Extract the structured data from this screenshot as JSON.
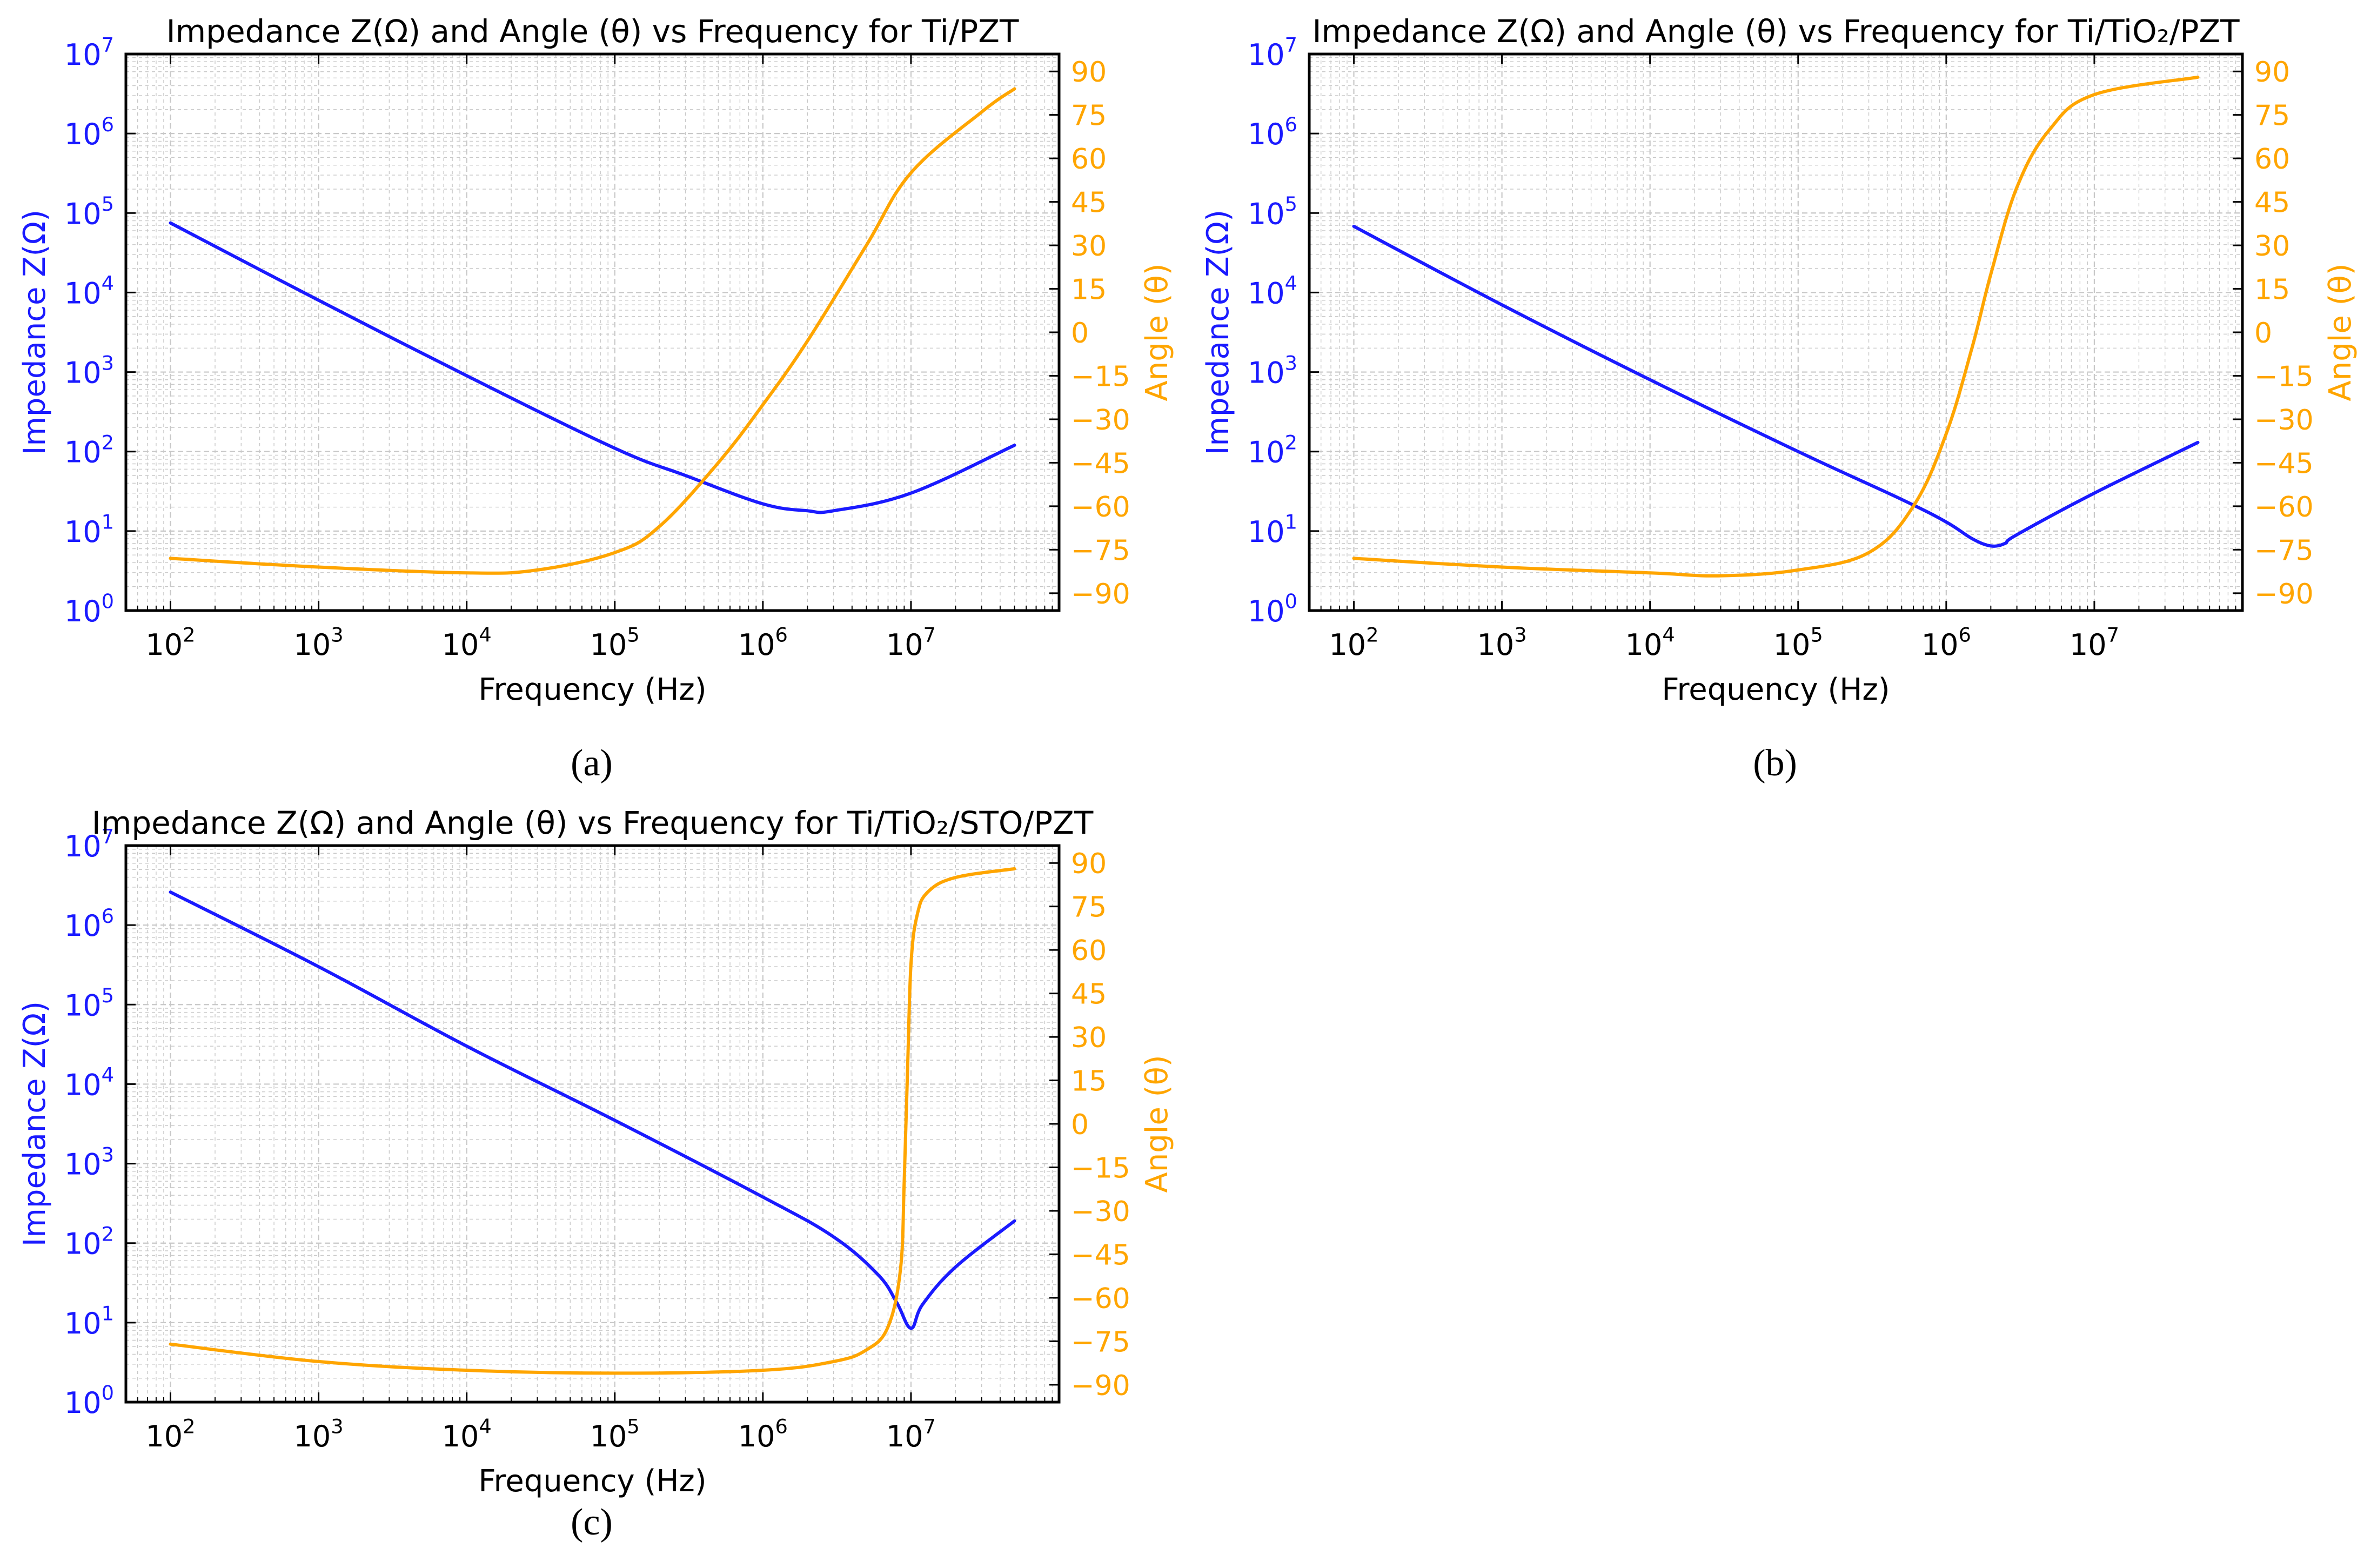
{
  "colors": {
    "impedance": "#1a1aff",
    "angle": "#ffa500",
    "axis": "#000000",
    "grid": "#c8c8c8",
    "text": "#000000"
  },
  "chart_data": [
    {
      "panel": "(a)",
      "type": "line",
      "title": "Impedance Z(Ω) and Angle (θ) vs Frequency for Ti/PZT",
      "xlabel": "Frequency (Hz)",
      "ylabel_left": "Impedance Z(Ω)",
      "ylabel_right": "Angle (θ)",
      "xscale": "log",
      "xlim": [
        50,
        100000000
      ],
      "xticks": [
        {
          "value": 100,
          "exp": "2"
        },
        {
          "value": 1000,
          "exp": "3"
        },
        {
          "value": 10000,
          "exp": "4"
        },
        {
          "value": 100000,
          "exp": "5"
        },
        {
          "value": 1000000,
          "exp": "6"
        },
        {
          "value": 10000000,
          "exp": "7"
        }
      ],
      "yscale_left": "log",
      "ylim_left": [
        1,
        10000000
      ],
      "yticks_left": [
        {
          "value": 1,
          "exp": "0"
        },
        {
          "value": 10,
          "exp": "1"
        },
        {
          "value": 100,
          "exp": "2"
        },
        {
          "value": 1000,
          "exp": "3"
        },
        {
          "value": 10000,
          "exp": "4"
        },
        {
          "value": 100000,
          "exp": "5"
        },
        {
          "value": 1000000,
          "exp": "6"
        },
        {
          "value": 10000000,
          "exp": "7"
        }
      ],
      "ylim_right": [
        -96,
        96
      ],
      "yticks_right": [
        -90,
        -75,
        -60,
        -45,
        -30,
        -15,
        0,
        15,
        30,
        45,
        60,
        75,
        90
      ],
      "series": [
        {
          "name": "Impedance Z(Ω)",
          "axis": "left",
          "x": [
            100,
            1000,
            10000,
            100000,
            300000,
            1000000,
            2000000,
            3000000,
            10000000,
            50000000
          ],
          "y": [
            75000,
            8000,
            900,
            110,
            50,
            22,
            18,
            18,
            30,
            120
          ]
        },
        {
          "name": "Angle (θ)",
          "axis": "right",
          "x": [
            100,
            1000,
            10000,
            30000,
            100000,
            200000,
            500000,
            1000000,
            2000000,
            5000000,
            10000000,
            30000000,
            50000000
          ],
          "y": [
            -78,
            -81,
            -83,
            -82,
            -76,
            -67,
            -45,
            -25,
            -3,
            30,
            55,
            76,
            84
          ]
        }
      ]
    },
    {
      "panel": "(b)",
      "type": "line",
      "title": "Impedance Z(Ω) and Angle (θ) vs Frequency for Ti/TiO₂/PZT",
      "xlabel": "Frequency (Hz)",
      "ylabel_left": "Impedance Z(Ω)",
      "ylabel_right": "Angle (θ)",
      "xscale": "log",
      "xlim": [
        50,
        100000000
      ],
      "xticks": [
        {
          "value": 100,
          "exp": "2"
        },
        {
          "value": 1000,
          "exp": "3"
        },
        {
          "value": 10000,
          "exp": "4"
        },
        {
          "value": 100000,
          "exp": "5"
        },
        {
          "value": 1000000,
          "exp": "6"
        },
        {
          "value": 10000000,
          "exp": "7"
        }
      ],
      "yscale_left": "log",
      "ylim_left": [
        1,
        10000000
      ],
      "yticks_left": [
        {
          "value": 1,
          "exp": "0"
        },
        {
          "value": 10,
          "exp": "1"
        },
        {
          "value": 100,
          "exp": "2"
        },
        {
          "value": 1000,
          "exp": "3"
        },
        {
          "value": 10000,
          "exp": "4"
        },
        {
          "value": 100000,
          "exp": "5"
        },
        {
          "value": 1000000,
          "exp": "6"
        },
        {
          "value": 10000000,
          "exp": "7"
        }
      ],
      "ylim_right": [
        -96,
        96
      ],
      "yticks_right": [
        -90,
        -75,
        -60,
        -45,
        -30,
        -15,
        0,
        15,
        30,
        45,
        60,
        75,
        90
      ],
      "series": [
        {
          "name": "Impedance Z(Ω)",
          "axis": "left",
          "x": [
            100,
            1000,
            10000,
            100000,
            500000,
            1000000,
            1500000,
            2000000,
            2500000,
            3000000,
            10000000,
            50000000
          ],
          "y": [
            68000,
            7000,
            800,
            100,
            25,
            13,
            8,
            6.5,
            7,
            9,
            30,
            130
          ]
        },
        {
          "name": "Angle (θ)",
          "axis": "right",
          "x": [
            100,
            1000,
            10000,
            30000,
            100000,
            300000,
            600000,
            1000000,
            1500000,
            2000000,
            3000000,
            5000000,
            10000000,
            50000000
          ],
          "y": [
            -78,
            -81,
            -83,
            -84,
            -82,
            -76,
            -60,
            -35,
            -5,
            20,
            50,
            70,
            82,
            88
          ]
        }
      ]
    },
    {
      "panel": "(c)",
      "type": "line",
      "title": "Impedance Z(Ω) and Angle (θ) vs Frequency for Ti/TiO₂/STO/PZT",
      "xlabel": "Frequency (Hz)",
      "ylabel_left": "Impedance Z(Ω)",
      "ylabel_right": "Angle (θ)",
      "xscale": "log",
      "xlim": [
        50,
        100000000
      ],
      "xticks": [
        {
          "value": 100,
          "exp": "2"
        },
        {
          "value": 1000,
          "exp": "3"
        },
        {
          "value": 10000,
          "exp": "4"
        },
        {
          "value": 100000,
          "exp": "5"
        },
        {
          "value": 1000000,
          "exp": "6"
        },
        {
          "value": 10000000,
          "exp": "7"
        }
      ],
      "yscale_left": "log",
      "ylim_left": [
        1,
        10000000
      ],
      "yticks_left": [
        {
          "value": 1,
          "exp": "0"
        },
        {
          "value": 10,
          "exp": "1"
        },
        {
          "value": 100,
          "exp": "2"
        },
        {
          "value": 1000,
          "exp": "3"
        },
        {
          "value": 10000,
          "exp": "4"
        },
        {
          "value": 100000,
          "exp": "5"
        },
        {
          "value": 1000000,
          "exp": "6"
        },
        {
          "value": 10000000,
          "exp": "7"
        }
      ],
      "ylim_right": [
        -96,
        96
      ],
      "yticks_right": [
        -90,
        -75,
        -60,
        -45,
        -30,
        -15,
        0,
        15,
        30,
        45,
        60,
        75,
        90
      ],
      "series": [
        {
          "name": "Impedance Z(Ω)",
          "axis": "left",
          "x": [
            100,
            1000,
            10000,
            100000,
            1000000,
            3000000,
            6000000,
            8000000,
            10000000,
            12000000,
            20000000,
            50000000
          ],
          "y": [
            2600000,
            300000,
            30000,
            3500,
            380,
            120,
            40,
            18,
            8.5,
            17,
            50,
            190
          ]
        },
        {
          "name": "Angle (θ)",
          "axis": "right",
          "x": [
            100,
            1000,
            10000,
            100000,
            1000000,
            3000000,
            5000000,
            7000000,
            8500000,
            9000000,
            9500000,
            10000000,
            11000000,
            13000000,
            20000000,
            50000000
          ],
          "y": [
            -76,
            -82,
            -85,
            -86,
            -85,
            -82,
            -78,
            -70,
            -50,
            -20,
            20,
            55,
            72,
            80,
            85,
            88
          ]
        }
      ]
    }
  ]
}
